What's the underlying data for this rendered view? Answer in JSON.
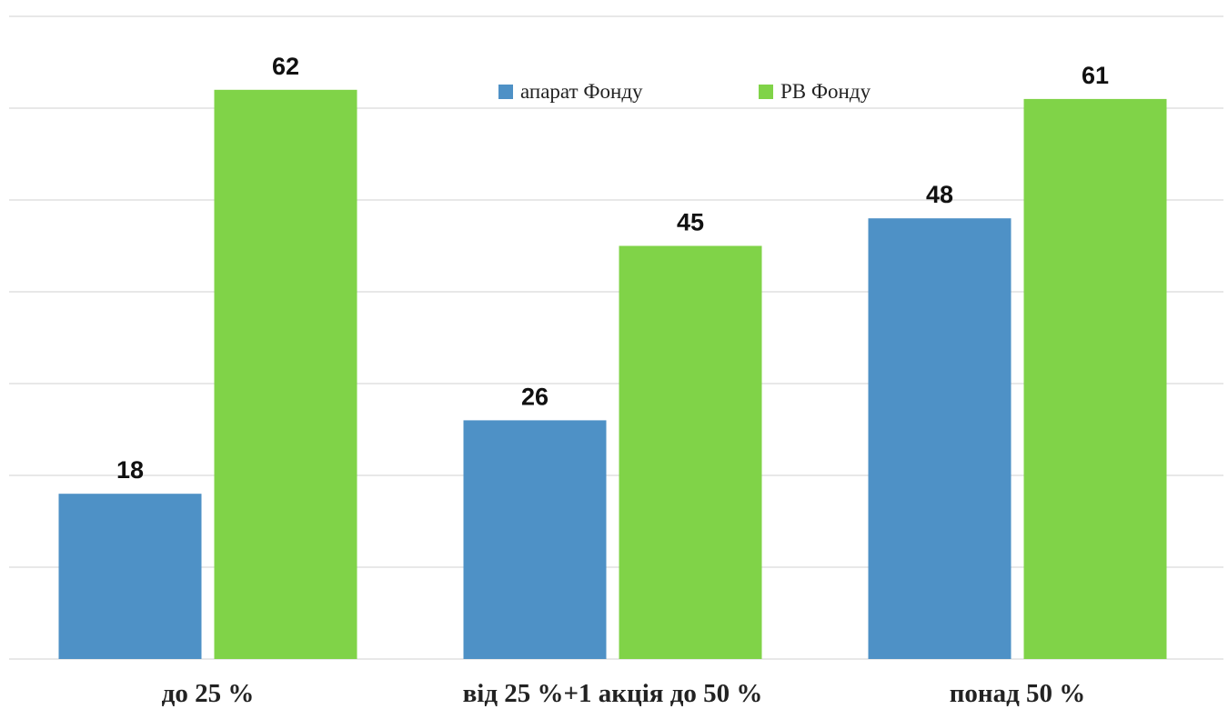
{
  "chart_data": {
    "type": "bar",
    "categories": [
      "до 25 %",
      "від 25 %+1 акція до 50 %",
      "понад 50 %"
    ],
    "series": [
      {
        "name": "апарат Фонду",
        "values": [
          18,
          26,
          48
        ],
        "color": "#4e91c6"
      },
      {
        "name": "РВ Фонду",
        "values": [
          62,
          45,
          61
        ],
        "color": "#80d348"
      }
    ],
    "ylim": [
      0,
      70
    ],
    "grid": true,
    "legend_position": "top-center",
    "title": "",
    "xlabel": "",
    "ylabel": ""
  }
}
